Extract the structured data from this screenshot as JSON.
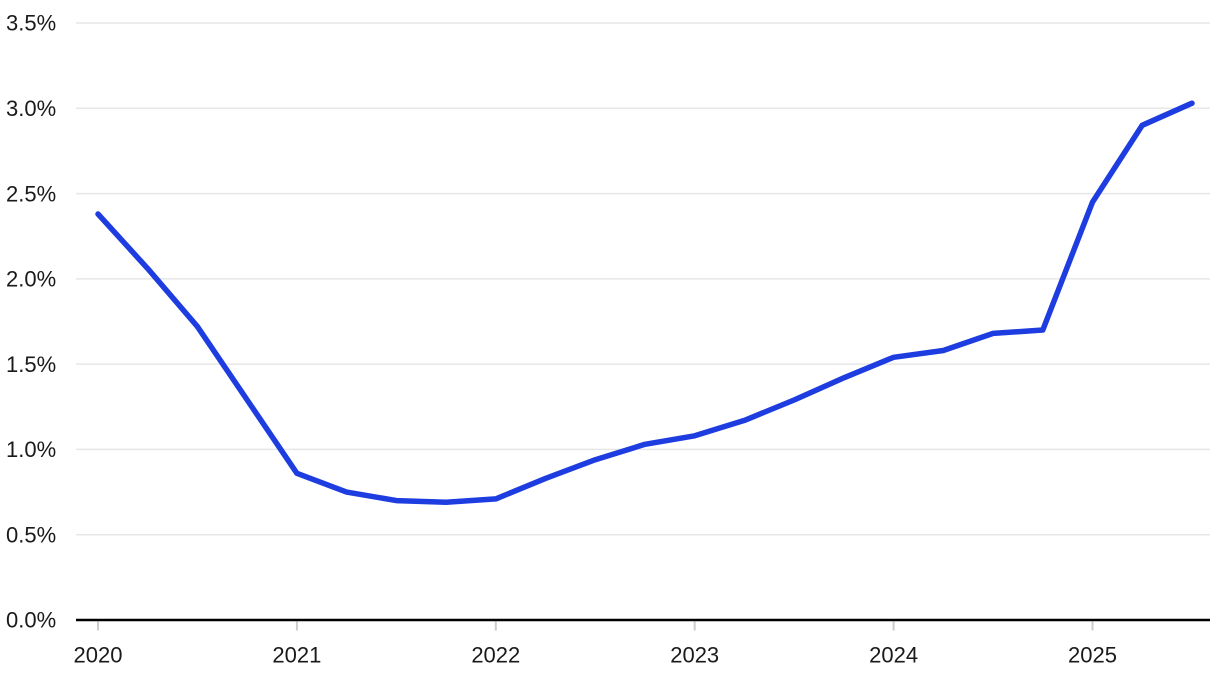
{
  "page": {
    "background": "#ffffff"
  },
  "chart_data": {
    "type": "line",
    "title": "",
    "xlabel": "",
    "ylabel": "",
    "legend_position": "none",
    "grid": "horizontal",
    "categories": [
      "2020 Q1",
      "2020 Q2",
      "2020 Q3",
      "2020 Q4",
      "2021 Q1",
      "2021 Q2",
      "2021 Q3",
      "2021 Q4",
      "2022 Q1",
      "2022 Q2",
      "2022 Q3",
      "2022 Q4",
      "2023 Q1",
      "2023 Q2",
      "2023 Q3",
      "2023 Q4",
      "2024 Q1",
      "2024 Q2",
      "2024 Q3",
      "2024 Q4",
      "2025 Q1",
      "2025 Q2",
      "2025 Q3"
    ],
    "series": [
      {
        "name": "rate-percent",
        "values": [
          2.38,
          2.06,
          1.72,
          1.29,
          0.86,
          0.75,
          0.7,
          0.69,
          0.71,
          0.83,
          0.94,
          1.03,
          1.08,
          1.17,
          1.29,
          1.42,
          1.54,
          1.58,
          1.68,
          1.7,
          2.45,
          2.9,
          3.03
        ]
      }
    ],
    "x_start": 2020,
    "x_step": 0.25,
    "xlim": [
      2020,
      2025.5
    ],
    "ylim": [
      0,
      3.5
    ],
    "y_ticks": [
      {
        "value": 0.0,
        "label": "0.0%"
      },
      {
        "value": 0.5,
        "label": "0.5%"
      },
      {
        "value": 1.0,
        "label": "1.0%"
      },
      {
        "value": 1.5,
        "label": "1.5%"
      },
      {
        "value": 2.0,
        "label": "2.0%"
      },
      {
        "value": 2.5,
        "label": "2.5%"
      },
      {
        "value": 3.0,
        "label": "3.0%"
      },
      {
        "value": 3.5,
        "label": "3.5%"
      }
    ],
    "x_ticks": [
      {
        "value": 2020,
        "label": "2020"
      },
      {
        "value": 2021,
        "label": "2021"
      },
      {
        "value": 2022,
        "label": "2022"
      },
      {
        "value": 2023,
        "label": "2023"
      },
      {
        "value": 2024,
        "label": "2024"
      },
      {
        "value": 2025,
        "label": "2025"
      }
    ],
    "colors": {
      "line": "#1e3de0",
      "grid": "#e7e7e7",
      "axis": "#000000",
      "tick": "#cccccc",
      "text": "#1a1a1a",
      "background": "#ffffff"
    }
  }
}
